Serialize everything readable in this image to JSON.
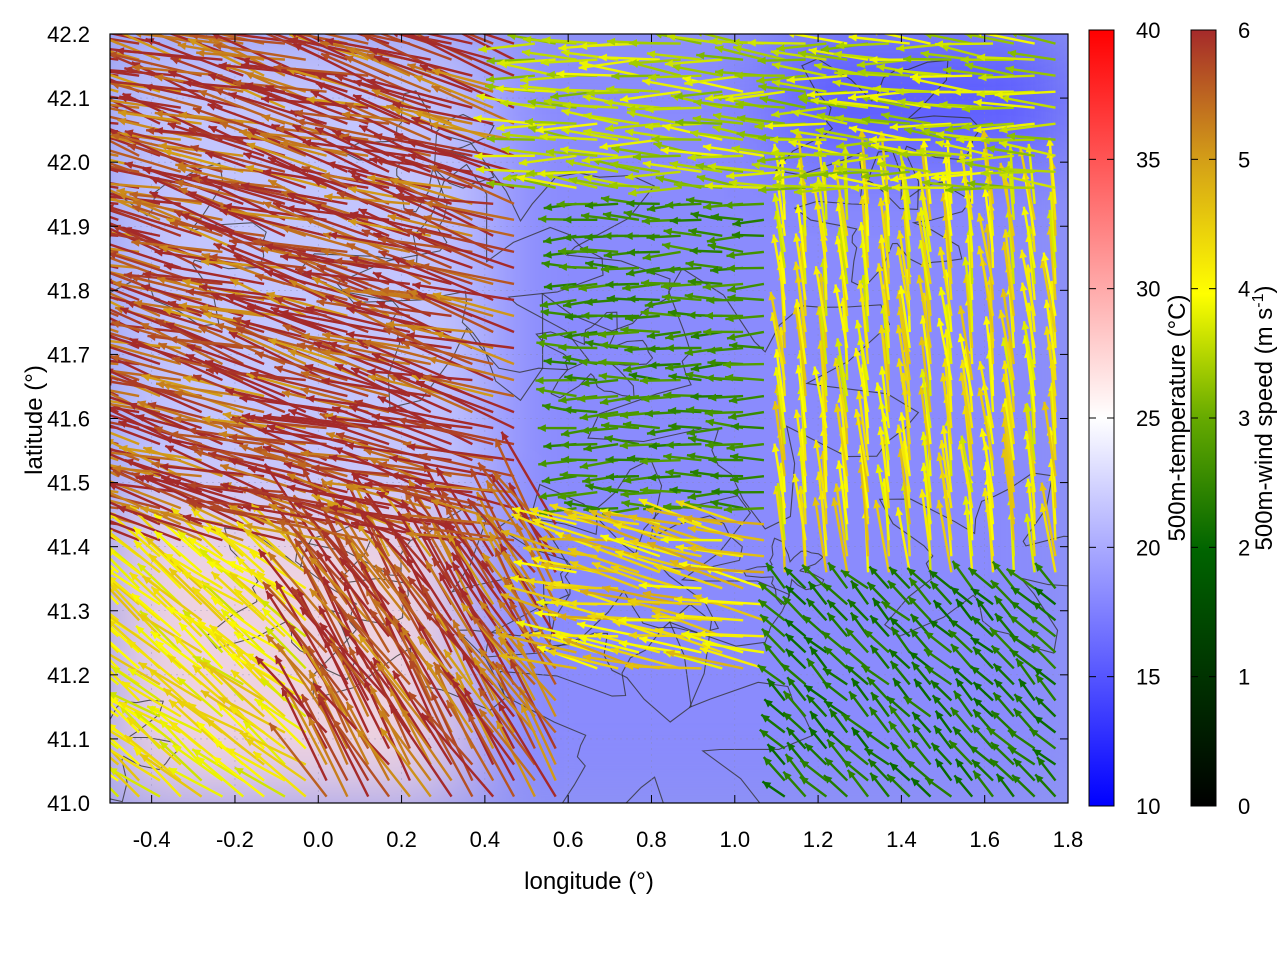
{
  "chart_data": {
    "type": "heatmap",
    "title": "",
    "xlabel": "longitude (°)",
    "ylabel": "latitude (°)",
    "xlim": [
      -0.5,
      1.8
    ],
    "ylim": [
      41.0,
      42.2
    ],
    "x_ticks": [
      "-0.4",
      "-0.2",
      "0.0",
      "0.2",
      "0.4",
      "0.6",
      "0.8",
      "1.0",
      "1.2",
      "1.4",
      "1.6",
      "1.8"
    ],
    "y_ticks": [
      "41.0",
      "41.1",
      "41.2",
      "41.3",
      "41.4",
      "41.5",
      "41.6",
      "41.7",
      "41.8",
      "41.9",
      "42.0",
      "42.1",
      "42.2"
    ],
    "grid": true,
    "background_field": {
      "name": "500m-temperature",
      "colorbar_label": "500m-temperature (°C)",
      "range": [
        10,
        40
      ],
      "ticks": [
        "10",
        "15",
        "20",
        "25",
        "30",
        "35",
        "40"
      ],
      "colors": [
        "#0000ff",
        "#ffffff",
        "#ff0000"
      ],
      "description_regions": [
        {
          "lon": [
            -0.5,
            0.35
          ],
          "lat": [
            41.0,
            41.45
          ],
          "temp": 27
        },
        {
          "lon": [
            -0.5,
            0.4
          ],
          "lat": [
            41.45,
            42.2
          ],
          "temp": 22
        },
        {
          "lon": [
            0.4,
            1.8
          ],
          "lat": [
            41.0,
            42.2
          ],
          "temp": 18
        },
        {
          "lon": [
            1.1,
            1.8
          ],
          "lat": [
            42.0,
            42.2
          ],
          "temp": 15
        }
      ]
    },
    "vector_field": {
      "name": "500m-wind speed",
      "colorbar_label_main": "500m-wind speed (m s",
      "colorbar_label_sup": "-1",
      "colorbar_label_end": ")",
      "range": [
        0,
        6
      ],
      "ticks": [
        "0",
        "1",
        "2",
        "3",
        "4",
        "5",
        "6"
      ],
      "colors": [
        "#000000",
        "#006400",
        "#66aa00",
        "#ffff00",
        "#d4a017",
        "#a52a2a"
      ],
      "regions": [
        {
          "lon": [
            -0.5,
            0.5
          ],
          "lat": [
            41.4,
            42.2
          ],
          "u": -1.0,
          "v": 0.28,
          "speed": 6.0
        },
        {
          "lon": [
            0.0,
            0.6
          ],
          "lat": [
            41.0,
            41.45
          ],
          "u": -0.5,
          "v": 0.8,
          "speed": 6.0
        },
        {
          "lon": [
            -0.5,
            0.0
          ],
          "lat": [
            41.0,
            41.45
          ],
          "u": -0.8,
          "v": 0.6,
          "speed": 4.0
        },
        {
          "lon": [
            0.4,
            1.8
          ],
          "lat": [
            41.95,
            42.2
          ],
          "u": -1.0,
          "v": 0.05,
          "speed": 3.2
        },
        {
          "lon": [
            0.6,
            1.1
          ],
          "lat": [
            41.45,
            41.95
          ],
          "u": -1.0,
          "v": 0.0,
          "speed": 2.0
        },
        {
          "lon": [
            1.1,
            1.8
          ],
          "lat": [
            41.35,
            41.95
          ],
          "u": -0.1,
          "v": 1.0,
          "speed": 4.0
        },
        {
          "lon": [
            0.6,
            1.1
          ],
          "lat": [
            41.2,
            41.45
          ],
          "u": -1.0,
          "v": 0.2,
          "speed": 4.3
        },
        {
          "lon": [
            1.1,
            1.8
          ],
          "lat": [
            41.0,
            41.35
          ],
          "u": -0.7,
          "v": 0.7,
          "speed": 1.6
        }
      ]
    },
    "contours": {
      "color": "#333333"
    }
  }
}
